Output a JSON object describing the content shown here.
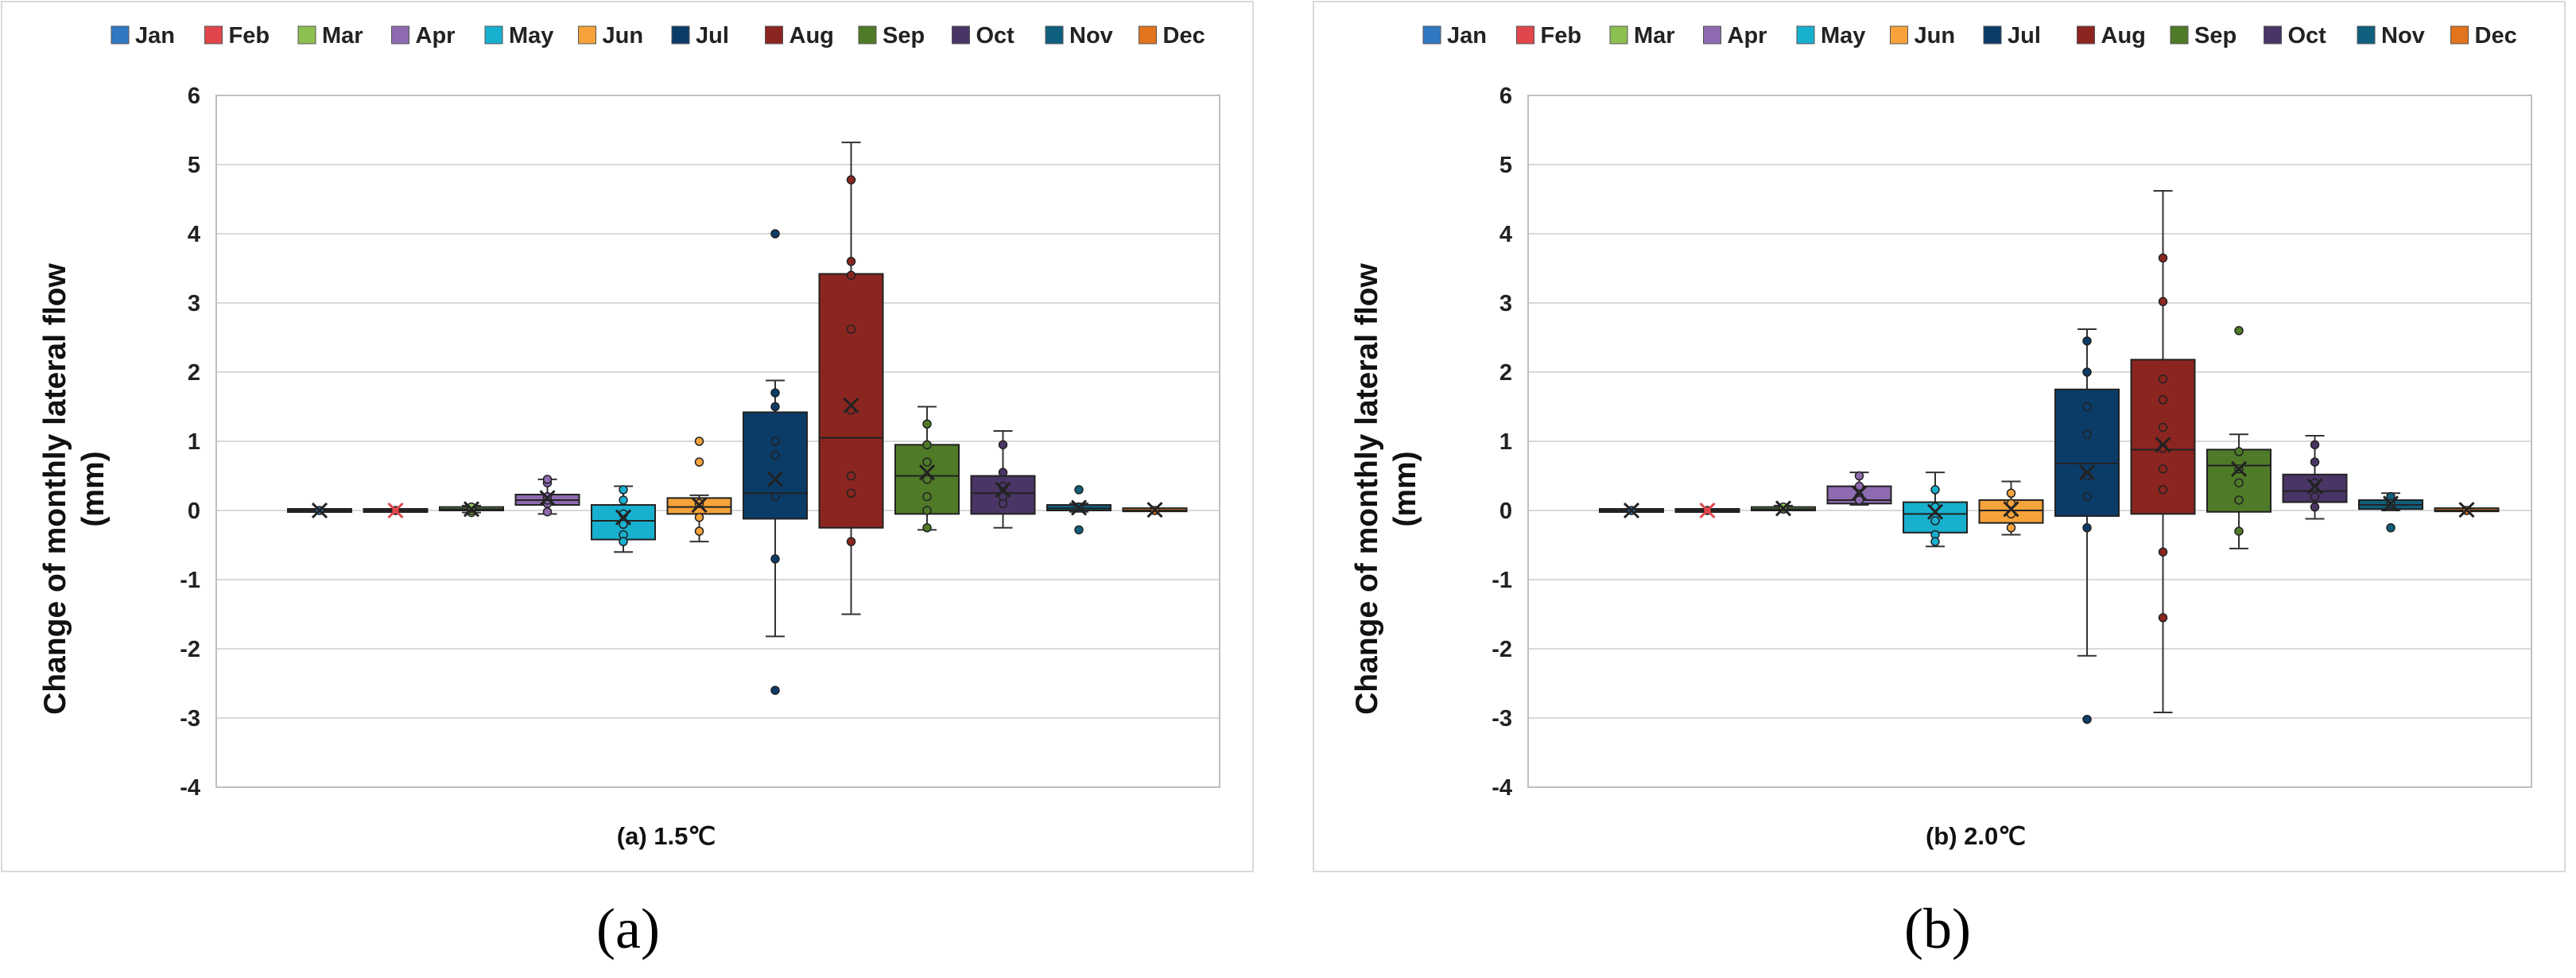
{
  "figure": {
    "panel_labels": [
      "(a)",
      "(b)"
    ]
  },
  "colors": {
    "Jan": "#2f78c2",
    "Feb": "#e0464b",
    "Mar": "#8cc152",
    "Apr": "#8e6bb0",
    "May": "#18b0cf",
    "Jun": "#f7a33b",
    "Jul": "#0b3c68",
    "Aug": "#8b2520",
    "Sep": "#4f7a28",
    "Oct": "#4a3566",
    "Nov": "#0f5f7e",
    "Dec": "#e2741d"
  },
  "chart_data": [
    {
      "type": "box",
      "caption": "(a) 1.5℃",
      "ylabel": "Change of monthly lateral flow (mm)",
      "ylabel_lines": [
        "Change of monthly lateral flow",
        "(mm)"
      ],
      "ylim": [
        -4,
        6
      ],
      "yticks": [
        "6",
        "5",
        "4",
        "3",
        "2",
        "1",
        "0",
        "-1",
        "-2",
        "-3",
        "-4"
      ],
      "grid": true,
      "legend": {
        "position": "top",
        "entries": [
          "Jan",
          "Feb",
          "Mar",
          "Apr",
          "May",
          "Jun",
          "Jul",
          "Aug",
          "Sep",
          "Oct",
          "Nov",
          "Dec"
        ]
      },
      "series": [
        {
          "name": "Jan",
          "min": 0,
          "q1": 0,
          "median": 0,
          "q3": 0,
          "max": 0,
          "mean": 0,
          "points": [
            0
          ]
        },
        {
          "name": "Feb",
          "min": 0,
          "q1": 0,
          "median": 0,
          "q3": 0,
          "max": 0,
          "mean": 0,
          "points": [
            0
          ]
        },
        {
          "name": "Mar",
          "min": -0.03,
          "q1": 0,
          "median": 0.02,
          "q3": 0.05,
          "max": 0.07,
          "mean": 0.02,
          "points": [
            -0.03,
            0,
            0.03,
            0.05
          ]
        },
        {
          "name": "Apr",
          "min": -0.05,
          "q1": 0.08,
          "median": 0.15,
          "q3": 0.23,
          "max": 0.45,
          "mean": 0.18,
          "points": [
            0.1,
            0.15,
            0.2,
            0.4,
            0.45,
            -0.02
          ]
        },
        {
          "name": "May",
          "min": -0.6,
          "q1": -0.42,
          "median": -0.15,
          "q3": 0.08,
          "max": 0.35,
          "mean": -0.1,
          "points": [
            0.3,
            0.15,
            -0.05,
            -0.2,
            -0.35,
            -0.45
          ]
        },
        {
          "name": "Jun",
          "min": -0.45,
          "q1": -0.05,
          "median": 0.05,
          "q3": 0.18,
          "max": 0.22,
          "mean": 0.08,
          "points": [
            1.0,
            0.7,
            0.1,
            -0.1,
            -0.3
          ]
        },
        {
          "name": "Jul",
          "min": -1.82,
          "q1": -0.12,
          "median": 0.25,
          "q3": 1.42,
          "max": 1.88,
          "mean": 0.45,
          "points": [
            4.0,
            -2.6,
            1.7,
            1.5,
            1.0,
            0.8,
            0.2,
            -0.7
          ]
        },
        {
          "name": "Aug",
          "min": -1.5,
          "q1": -0.25,
          "median": 1.05,
          "q3": 3.42,
          "max": 5.32,
          "mean": 1.52,
          "points": [
            4.78,
            3.6,
            3.4,
            2.62,
            1.45,
            0.5,
            0.25,
            -0.45
          ]
        },
        {
          "name": "Sep",
          "min": -0.28,
          "q1": -0.05,
          "median": 0.5,
          "q3": 0.95,
          "max": 1.5,
          "mean": 0.55,
          "points": [
            1.25,
            0.95,
            0.7,
            0.45,
            0.2,
            0.0,
            -0.25
          ]
        },
        {
          "name": "Oct",
          "min": -0.25,
          "q1": -0.05,
          "median": 0.25,
          "q3": 0.5,
          "max": 1.15,
          "mean": 0.3,
          "points": [
            0.95,
            0.55,
            0.35,
            0.2,
            0.1
          ]
        },
        {
          "name": "Nov",
          "min": -0.02,
          "q1": 0.0,
          "median": 0.03,
          "q3": 0.08,
          "max": 0.1,
          "mean": 0.04,
          "points": [
            0.3,
            -0.28,
            0.05
          ]
        },
        {
          "name": "Dec",
          "min": 0,
          "q1": 0,
          "median": 0,
          "q3": 0.02,
          "max": 0.02,
          "mean": 0.01,
          "points": [
            0
          ]
        }
      ]
    },
    {
      "type": "box",
      "caption": "(b) 2.0℃",
      "ylabel": "Change of monthly lateral flow (mm)",
      "ylabel_lines": [
        "Change of monthly lateral flow",
        "(mm)"
      ],
      "ylim": [
        -4,
        6
      ],
      "yticks": [
        "6",
        "5",
        "4",
        "3",
        "2",
        "1",
        "0",
        "-1",
        "-2",
        "-3",
        "-4"
      ],
      "grid": true,
      "legend": {
        "position": "top",
        "entries": [
          "Jan",
          "Feb",
          "Mar",
          "Apr",
          "May",
          "Jun",
          "Jul",
          "Aug",
          "Sep",
          "Oct",
          "Nov",
          "Dec"
        ]
      },
      "series": [
        {
          "name": "Jan",
          "min": 0,
          "q1": 0,
          "median": 0,
          "q3": 0,
          "max": 0,
          "mean": 0,
          "points": [
            0
          ]
        },
        {
          "name": "Feb",
          "min": 0,
          "q1": 0,
          "median": 0,
          "q3": 0,
          "max": 0,
          "mean": 0,
          "points": [
            0
          ]
        },
        {
          "name": "Mar",
          "min": 0,
          "q1": 0.0,
          "median": 0.02,
          "q3": 0.05,
          "max": 0.07,
          "mean": 0.03,
          "points": [
            0.02,
            0.05
          ]
        },
        {
          "name": "Apr",
          "min": 0.08,
          "q1": 0.1,
          "median": 0.15,
          "q3": 0.35,
          "max": 0.55,
          "mean": 0.25,
          "points": [
            0.5,
            0.35,
            0.2,
            0.15
          ]
        },
        {
          "name": "May",
          "min": -0.52,
          "q1": -0.32,
          "median": -0.05,
          "q3": 0.12,
          "max": 0.55,
          "mean": -0.02,
          "points": [
            0.3,
            0.05,
            -0.15,
            -0.35,
            -0.45
          ]
        },
        {
          "name": "Jun",
          "min": -0.35,
          "q1": -0.18,
          "median": 0.0,
          "q3": 0.15,
          "max": 0.42,
          "mean": 0.02,
          "points": [
            0.25,
            0.1,
            -0.05,
            -0.25
          ]
        },
        {
          "name": "Jul",
          "min": -2.1,
          "q1": -0.08,
          "median": 0.68,
          "q3": 1.75,
          "max": 2.62,
          "mean": 0.55,
          "points": [
            2.45,
            2.0,
            1.5,
            1.1,
            0.5,
            0.2,
            -0.25,
            -3.02
          ]
        },
        {
          "name": "Aug",
          "min": -2.92,
          "q1": -0.05,
          "median": 0.88,
          "q3": 2.18,
          "max": 4.62,
          "mean": 0.95,
          "points": [
            3.65,
            3.02,
            1.9,
            1.6,
            1.2,
            0.9,
            0.6,
            0.3,
            -0.6,
            -1.55
          ]
        },
        {
          "name": "Sep",
          "min": -0.55,
          "q1": -0.02,
          "median": 0.65,
          "q3": 0.88,
          "max": 1.1,
          "mean": 0.6,
          "points": [
            2.6,
            0.85,
            0.6,
            0.4,
            0.15,
            -0.3
          ]
        },
        {
          "name": "Oct",
          "min": -0.12,
          "q1": 0.12,
          "median": 0.28,
          "q3": 0.52,
          "max": 1.08,
          "mean": 0.35,
          "points": [
            0.95,
            0.7,
            0.4,
            0.2,
            0.05
          ]
        },
        {
          "name": "Nov",
          "min": 0.0,
          "q1": 0.02,
          "median": 0.08,
          "q3": 0.15,
          "max": 0.25,
          "mean": 0.1,
          "points": [
            0.2,
            -0.25,
            0.1
          ]
        },
        {
          "name": "Dec",
          "min": 0,
          "q1": 0,
          "median": 0,
          "q3": 0.02,
          "max": 0.02,
          "mean": 0.01,
          "points": [
            0
          ]
        }
      ]
    }
  ]
}
